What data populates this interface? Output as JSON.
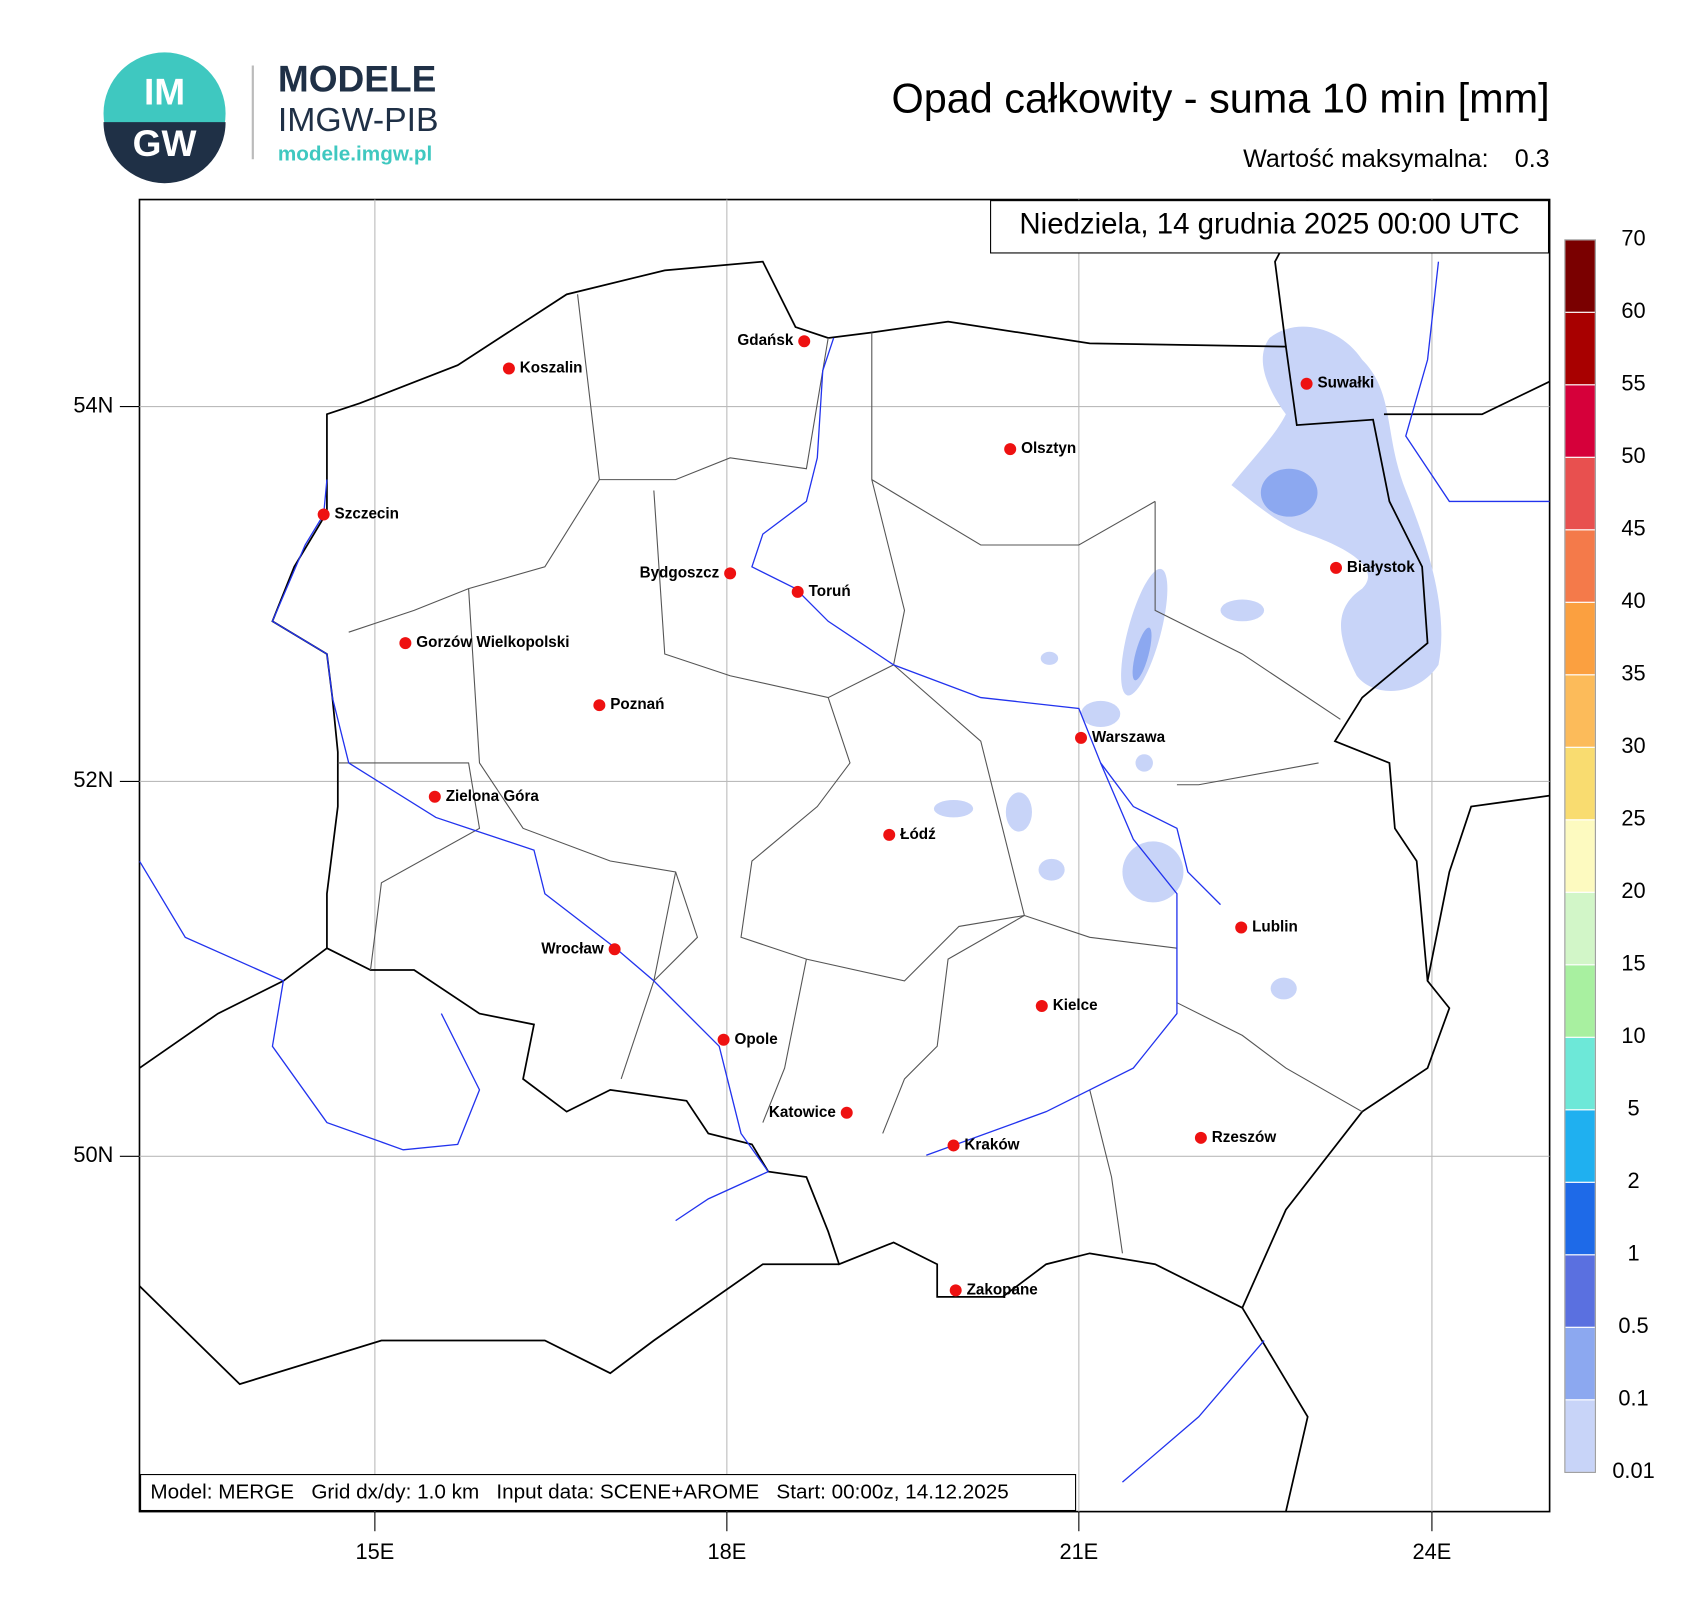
{
  "header": {
    "logo_top": "IM",
    "logo_bottom": "GW",
    "brand": "MODELE",
    "org": "IMGW-PIB",
    "url": "modele.imgw.pl"
  },
  "map": {
    "title": "Opad całkowity - suma 10 min [mm]",
    "max_label": "Wartość maksymalna:",
    "max_value": 0.3,
    "date": "Niedziela, 14 grudnia 2025 00:00 UTC",
    "footer": "Model: MERGE   Grid dx/dy: 1.0 km   Input data: SCENE+AROME   Start: 00:00z, 14.12.2025",
    "lat_ticks": [
      "54N",
      "52N",
      "50N"
    ],
    "lon_ticks": [
      "15E",
      "18E",
      "21E",
      "24E"
    ],
    "cities": [
      "Koszalin",
      "Gdańsk",
      "Suwałki",
      "Olsztyn",
      "Szczecin",
      "Bydgoszcz",
      "Toruń",
      "Białystok",
      "Gorzów Wielkopolski",
      "Poznań",
      "Warszawa",
      "Zielona Góra",
      "Łódź",
      "Lublin",
      "Wrocław",
      "Kielce",
      "Opole",
      "Katowice",
      "Kraków",
      "Rzeszów",
      "Zakopane"
    ],
    "legend": {
      "levels": [
        70,
        60,
        55,
        50,
        45,
        40,
        35,
        30,
        25,
        20,
        15,
        10,
        5,
        2,
        1,
        0.5,
        0.1,
        0.01
      ],
      "colors": [
        "#7a0000",
        "#a80000",
        "#d6003a",
        "#e8504f",
        "#f47a4a",
        "#fba040",
        "#fcbb5a",
        "#f9dc70",
        "#fdfac0",
        "#d2f6c8",
        "#a8f0a0",
        "#6de8d8",
        "#1fb0f0",
        "#1e6ae8",
        "#5a70e0",
        "#8ca8f0",
        "#c8d4f8"
      ]
    }
  }
}
